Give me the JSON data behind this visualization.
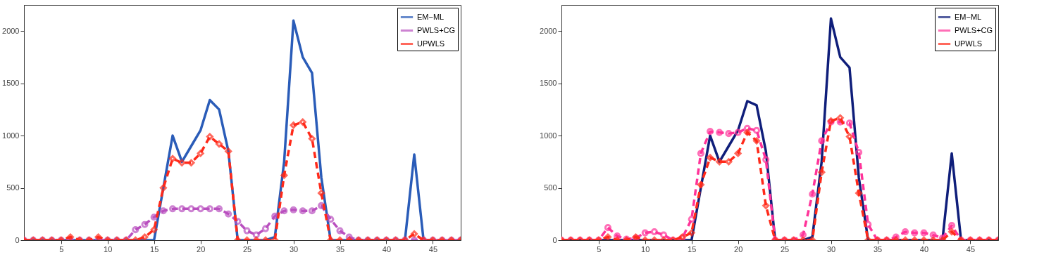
{
  "chart_data": [
    {
      "type": "line",
      "x": [
        1,
        2,
        3,
        4,
        5,
        6,
        7,
        8,
        9,
        10,
        11,
        12,
        13,
        14,
        15,
        16,
        17,
        18,
        19,
        20,
        21,
        22,
        23,
        24,
        25,
        26,
        27,
        28,
        29,
        30,
        31,
        32,
        33,
        34,
        35,
        36,
        37,
        38,
        39,
        40,
        41,
        42,
        43,
        44,
        45,
        46,
        47,
        48
      ],
      "xlim": [
        1,
        48
      ],
      "xticks": [
        5,
        10,
        15,
        20,
        25,
        30,
        35,
        40,
        45
      ],
      "ylim": [
        0,
        2250
      ],
      "yticks": [
        0,
        500,
        1000,
        1500,
        2000
      ],
      "grid": false,
      "legend": "top right",
      "series": [
        {
          "name": "EM−ML",
          "color": "#2a5cb8",
          "marker": "none",
          "line_style": "solid",
          "values": [
            0,
            0,
            0,
            0,
            0,
            0,
            0,
            0,
            0,
            0,
            0,
            0,
            0,
            0,
            0,
            500,
            1000,
            750,
            900,
            1050,
            1340,
            1250,
            850,
            0,
            0,
            0,
            0,
            30,
            750,
            2100,
            1750,
            1600,
            600,
            0,
            0,
            0,
            0,
            0,
            0,
            0,
            0,
            0,
            820,
            0,
            0,
            null,
            null,
            null
          ]
        },
        {
          "name": "PWLS+CG",
          "color": "#b94fbf",
          "marker": "circle",
          "line_style": "dashed",
          "values": [
            0,
            0,
            0,
            0,
            0,
            0,
            0,
            0,
            0,
            0,
            0,
            0,
            100,
            150,
            220,
            280,
            300,
            300,
            300,
            300,
            300,
            300,
            250,
            180,
            90,
            50,
            110,
            230,
            280,
            290,
            280,
            280,
            330,
            200,
            90,
            30,
            0,
            0,
            0,
            0,
            0,
            0,
            0,
            0,
            0,
            0,
            0,
            0
          ]
        },
        {
          "name": "UPWLS",
          "color": "#ff2a1a",
          "marker": "diamond",
          "line_style": "dashed",
          "values": [
            0,
            0,
            0,
            0,
            0,
            30,
            0,
            0,
            30,
            0,
            0,
            0,
            0,
            30,
            100,
            500,
            780,
            740,
            740,
            830,
            990,
            920,
            850,
            0,
            0,
            0,
            0,
            0,
            620,
            1100,
            1130,
            970,
            450,
            0,
            0,
            0,
            0,
            0,
            0,
            0,
            0,
            0,
            60,
            0,
            0,
            0,
            0,
            0
          ]
        }
      ]
    },
    {
      "type": "line",
      "x": [
        1,
        2,
        3,
        4,
        5,
        6,
        7,
        8,
        9,
        10,
        11,
        12,
        13,
        14,
        15,
        16,
        17,
        18,
        19,
        20,
        21,
        22,
        23,
        24,
        25,
        26,
        27,
        28,
        29,
        30,
        31,
        32,
        33,
        34,
        35,
        36,
        37,
        38,
        39,
        40,
        41,
        42,
        43,
        44,
        45,
        46,
        47,
        48
      ],
      "xlim": [
        1,
        48
      ],
      "xticks": [
        5,
        10,
        15,
        20,
        25,
        30,
        35,
        40,
        45
      ],
      "ylim": [
        0,
        2250
      ],
      "yticks": [
        0,
        500,
        1000,
        1500,
        2000
      ],
      "grid": false,
      "legend": "top right",
      "series": [
        {
          "name": "EM−ML",
          "color": "#0f1e7a",
          "marker": "none",
          "line_style": "solid",
          "values": [
            0,
            0,
            0,
            0,
            0,
            0,
            0,
            0,
            0,
            0,
            0,
            0,
            0,
            0,
            0,
            500,
            1000,
            750,
            900,
            1050,
            1330,
            1290,
            850,
            0,
            0,
            0,
            0,
            30,
            750,
            2120,
            1750,
            1650,
            600,
            0,
            0,
            0,
            0,
            0,
            0,
            0,
            0,
            0,
            830,
            0,
            0,
            0,
            0,
            0
          ]
        },
        {
          "name": "PWLS+CG",
          "color": "#ff3399",
          "marker": "circle",
          "line_style": "dashed",
          "values": [
            0,
            0,
            0,
            0,
            0,
            120,
            40,
            10,
            20,
            70,
            80,
            50,
            0,
            20,
            200,
            830,
            1040,
            1030,
            1020,
            1030,
            1070,
            1050,
            770,
            0,
            0,
            0,
            50,
            440,
            950,
            1130,
            1130,
            1120,
            840,
            150,
            0,
            0,
            30,
            80,
            70,
            70,
            50,
            20,
            140,
            0,
            0,
            0,
            0,
            0
          ]
        },
        {
          "name": "UPWLS",
          "color": "#ff2a1a",
          "marker": "diamond",
          "line_style": "dashed",
          "values": [
            0,
            0,
            0,
            0,
            0,
            30,
            0,
            0,
            30,
            0,
            0,
            0,
            0,
            30,
            70,
            530,
            790,
            750,
            750,
            830,
            1030,
            950,
            330,
            0,
            0,
            0,
            0,
            0,
            650,
            1140,
            1170,
            990,
            450,
            0,
            0,
            0,
            0,
            0,
            0,
            0,
            0,
            0,
            80,
            0,
            0,
            0,
            0,
            0
          ]
        }
      ]
    }
  ]
}
